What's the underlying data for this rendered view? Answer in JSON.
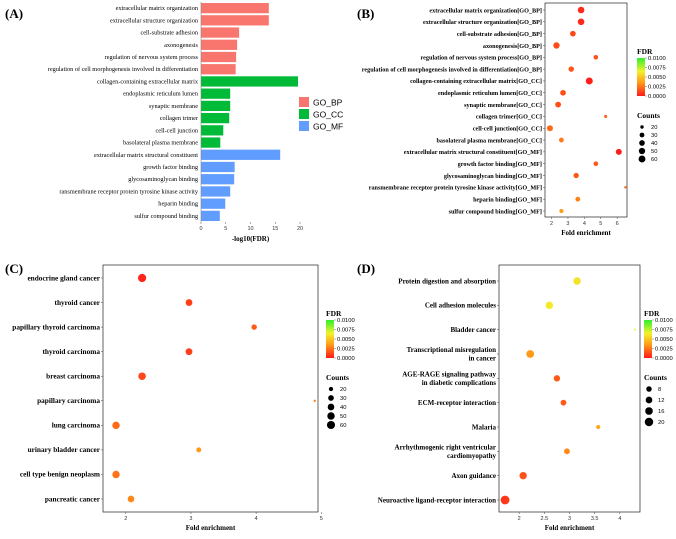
{
  "chart_data": [
    {
      "panel": "(A)",
      "type": "bar",
      "orientation": "horizontal",
      "xlabel": "-log10(FDR)",
      "xlim": [
        0,
        20
      ],
      "xticks": [
        0,
        5,
        10,
        15,
        20
      ],
      "legend": [
        "GO_BP",
        "GO_CC",
        "GO_MF"
      ],
      "colors": {
        "GO_BP": "#f8766d",
        "GO_CC": "#00ba38",
        "GO_MF": "#619cff"
      },
      "bars": [
        {
          "label": "extracellular matrix organization",
          "group": "GO_BP",
          "value": 13.7
        },
        {
          "label": "extracellular structure organization",
          "group": "GO_BP",
          "value": 13.7
        },
        {
          "label": "cell-substrate adhesion",
          "group": "GO_BP",
          "value": 7.7
        },
        {
          "label": "axonogenesis",
          "group": "GO_BP",
          "value": 7.3
        },
        {
          "label": "regulation of nervous system process",
          "group": "GO_BP",
          "value": 7.1
        },
        {
          "label": "regulation of cell morphogenesis involved in differentiation",
          "group": "GO_BP",
          "value": 7.0
        },
        {
          "label": "collagen-containing extracellular matrix",
          "group": "GO_CC",
          "value": 19.6
        },
        {
          "label": "endoplasmic reticulum lumen",
          "group": "GO_CC",
          "value": 5.9
        },
        {
          "label": "synaptic membrane",
          "group": "GO_CC",
          "value": 5.9
        },
        {
          "label": "collagen trimer",
          "group": "GO_CC",
          "value": 5.7
        },
        {
          "label": "cell-cell junction",
          "group": "GO_CC",
          "value": 4.5
        },
        {
          "label": "basolateral plasma membrane",
          "group": "GO_CC",
          "value": 3.9
        },
        {
          "label": "extracellular matrix structural constituent",
          "group": "GO_MF",
          "value": 16.0
        },
        {
          "label": "growth factor binding",
          "group": "GO_MF",
          "value": 6.8
        },
        {
          "label": "glycosaminoglycan binding",
          "group": "GO_MF",
          "value": 6.7
        },
        {
          "label": "ransmembrane receptor protein tyrosine kinase activity",
          "group": "GO_MF",
          "value": 5.9
        },
        {
          "label": "heparin binding",
          "group": "GO_MF",
          "value": 4.9
        },
        {
          "label": "sulfur compound binding",
          "group": "GO_MF",
          "value": 3.8
        }
      ]
    },
    {
      "panel": "(B)",
      "type": "scatter",
      "xlabel": "Fold enrichment",
      "xlim": [
        1.6,
        6.6
      ],
      "xticks": [
        2,
        3,
        4,
        5,
        6
      ],
      "fdr_title": "FDR",
      "fdr_ticks": [
        "0.0100",
        "0.0075",
        "0.0050",
        "0.0025",
        "0.0000"
      ],
      "fdr_max": 0.01,
      "size_title": "Counts",
      "size_legend": [
        20,
        30,
        40,
        50,
        60
      ],
      "size_range": [
        18,
        66
      ],
      "points": [
        {
          "label": "extracellular matrix organization[GO_BP]",
          "x": 3.8,
          "count": 55,
          "fdr": 0.0004
        },
        {
          "label": "extracellular structure organization[GO_BP]",
          "x": 3.8,
          "count": 55,
          "fdr": 0.0004
        },
        {
          "label": "cell-substrate adhesion[GO_BP]",
          "x": 3.3,
          "count": 40,
          "fdr": 0.0012
        },
        {
          "label": "axonogenesis[GO_BP]",
          "x": 2.3,
          "count": 50,
          "fdr": 0.0013
        },
        {
          "label": "regulation of nervous system process[GO_BP]",
          "x": 4.7,
          "count": 28,
          "fdr": 0.0015
        },
        {
          "label": "regulation of cell morphogenesis involved in differentiation[GO_BP]",
          "x": 3.2,
          "count": 38,
          "fdr": 0.0016
        },
        {
          "label": "collagen-containing extracellular matrix[GO_CC]",
          "x": 4.3,
          "count": 62,
          "fdr": 0.0001
        },
        {
          "label": "endoplasmic reticulum lumen[GO_CC]",
          "x": 2.7,
          "count": 40,
          "fdr": 0.0014
        },
        {
          "label": "synaptic membrane[GO_CC]",
          "x": 2.4,
          "count": 42,
          "fdr": 0.0014
        },
        {
          "label": "collagen trimer[GO_CC]",
          "x": 5.3,
          "count": 19,
          "fdr": 0.0018
        },
        {
          "label": "cell-cell junction[GO_CC]",
          "x": 1.9,
          "count": 45,
          "fdr": 0.0022
        },
        {
          "label": "basolateral plasma membrane[GO_CC]",
          "x": 2.6,
          "count": 30,
          "fdr": 0.0026
        },
        {
          "label": "extracellular matrix structural constituent[GO_MF]",
          "x": 6.1,
          "count": 45,
          "fdr": 0.0001
        },
        {
          "label": "growth factor binding[GO_MF]",
          "x": 4.7,
          "count": 28,
          "fdr": 0.0016
        },
        {
          "label": "glycosaminoglycan binding[GO_MF]",
          "x": 3.5,
          "count": 36,
          "fdr": 0.0016
        },
        {
          "label": "ransmembrane receptor protein tyrosine kinase activity[GO_MF]",
          "x": 6.5,
          "count": 18,
          "fdr": 0.0022
        },
        {
          "label": "heparin binding[GO_MF]",
          "x": 3.6,
          "count": 30,
          "fdr": 0.0028
        },
        {
          "label": "sulfur compound binding[GO_MF]",
          "x": 2.6,
          "count": 24,
          "fdr": 0.0035
        }
      ]
    },
    {
      "panel": "(C)",
      "type": "scatter",
      "xlabel": "Fold enrichment",
      "xlim": [
        1.65,
        4.95
      ],
      "xticks": [
        2,
        3,
        4,
        5
      ],
      "fdr_title": "FDR",
      "fdr_ticks": [
        "0.0100",
        "0.0075",
        "0.0050",
        "0.0025",
        "0.0000"
      ],
      "fdr_max": 0.01,
      "size_title": "Counts",
      "size_legend": [
        20,
        30,
        40,
        50,
        60
      ],
      "size_range": [
        15,
        65
      ],
      "points": [
        {
          "label": "endocrine gland cancer",
          "x": 2.25,
          "count": 62,
          "fdr": 0.0003
        },
        {
          "label": "thyroid cancer",
          "x": 2.97,
          "count": 42,
          "fdr": 0.001
        },
        {
          "label": "papillary thyroid carcinoma",
          "x": 3.97,
          "count": 28,
          "fdr": 0.0018
        },
        {
          "label": "thyroid carcinoma",
          "x": 2.97,
          "count": 42,
          "fdr": 0.001
        },
        {
          "label": "breast carcinoma",
          "x": 2.25,
          "count": 52,
          "fdr": 0.0012
        },
        {
          "label": "papillary carcinoma",
          "x": 4.9,
          "count": 15,
          "fdr": 0.0028
        },
        {
          "label": "lung carcinoma",
          "x": 1.85,
          "count": 50,
          "fdr": 0.0022
        },
        {
          "label": "urinary bladder cancer",
          "x": 3.12,
          "count": 24,
          "fdr": 0.0035
        },
        {
          "label": "cell type benign neoplasm",
          "x": 1.85,
          "count": 50,
          "fdr": 0.0024
        },
        {
          "label": "pancreatic cancer",
          "x": 2.08,
          "count": 40,
          "fdr": 0.003
        }
      ]
    },
    {
      "panel": "(D)",
      "type": "scatter",
      "xlabel": "Fold enrichment",
      "xlim": [
        1.6,
        4.4
      ],
      "xticks": [
        2.0,
        2.5,
        3.0,
        3.5,
        4.0
      ],
      "fdr_title": "FDR",
      "fdr_ticks": [
        "0.0100",
        "0.0075",
        "0.0050",
        "0.0025",
        "0.0000"
      ],
      "fdr_max": 0.01,
      "size_title": "Counts",
      "size_legend": [
        8,
        12,
        16,
        20
      ],
      "size_range": [
        3,
        22
      ],
      "points": [
        {
          "label": "Protein digestion and absorption",
          "x": 3.15,
          "count": 15,
          "fdr": 0.006
        },
        {
          "label": "Cell adhesion molecules",
          "x": 2.6,
          "count": 15,
          "fdr": 0.0062
        },
        {
          "label": "Bladder cancer",
          "x": 4.3,
          "count": 3,
          "fdr": 0.0065
        },
        {
          "label": "Transcriptional misregulation\nin cancer",
          "x": 2.22,
          "count": 17,
          "fdr": 0.0035
        },
        {
          "label": "AGE-RAGE signaling pathway\nin diabetic complications",
          "x": 2.75,
          "count": 11,
          "fdr": 0.0018
        },
        {
          "label": "ECM-receptor interaction",
          "x": 2.88,
          "count": 9,
          "fdr": 0.0018
        },
        {
          "label": "Malaria",
          "x": 3.57,
          "count": 5,
          "fdr": 0.004
        },
        {
          "label": "Arrhythmogenic right ventricular\ncardiomyopathy",
          "x": 2.95,
          "count": 9,
          "fdr": 0.003
        },
        {
          "label": "Axon guidance",
          "x": 2.08,
          "count": 15,
          "fdr": 0.0015
        },
        {
          "label": "Neuroactive ligand-receptor interaction",
          "x": 1.72,
          "count": 22,
          "fdr": 0.0008
        }
      ]
    }
  ]
}
